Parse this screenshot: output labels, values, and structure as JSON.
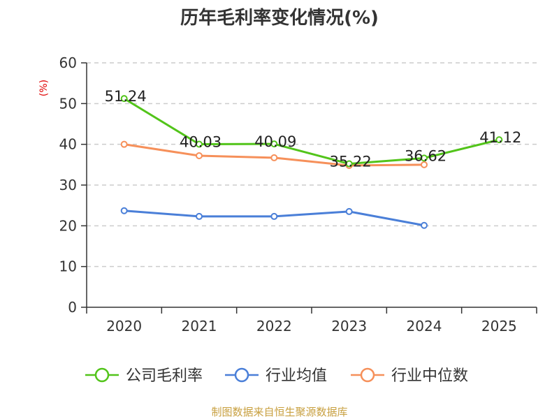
{
  "chart_data": {
    "type": "line",
    "title": "历年毛利率变化情况(%)",
    "ylabel": "(%)",
    "xlabel": "",
    "categories": [
      "2020",
      "2021",
      "2022",
      "2023",
      "2024",
      "2025"
    ],
    "ylim": [
      0,
      60
    ],
    "yticks": [
      0,
      10,
      20,
      30,
      40,
      50,
      60
    ],
    "grid": true,
    "legend_position": "bottom",
    "series": [
      {
        "name": "公司毛利率",
        "color": "#52c41a",
        "values": [
          51.24,
          40.03,
          40.09,
          35.22,
          36.62,
          41.12
        ],
        "labels": [
          "51.24",
          "40.03",
          "40.09",
          "35.22",
          "36.62",
          "41.12"
        ]
      },
      {
        "name": "行业均值",
        "color": "#4a7fd8",
        "values": [
          23.7,
          22.3,
          22.3,
          23.5,
          20.1,
          null
        ]
      },
      {
        "name": "行业中位数",
        "color": "#f6905a",
        "values": [
          40.0,
          37.2,
          36.7,
          34.8,
          35.0,
          null
        ]
      }
    ],
    "source": "制图数据来自恒生聚源数据库"
  }
}
